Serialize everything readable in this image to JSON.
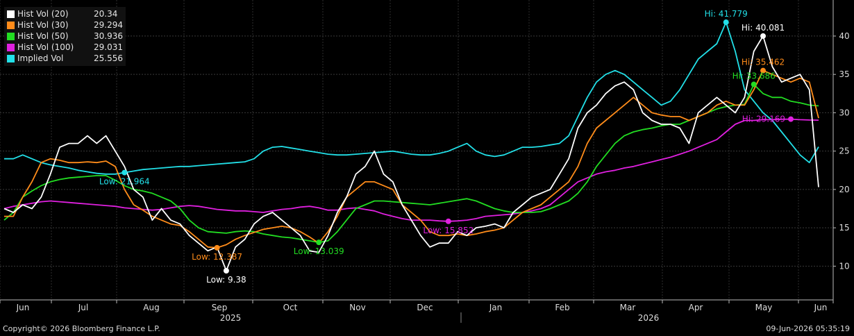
{
  "chart_data": {
    "type": "line",
    "y_axis": {
      "ticks": [
        10,
        15,
        20,
        25,
        30,
        35,
        40
      ],
      "ylim": [
        5.6,
        44.7
      ],
      "side": "right"
    },
    "x_axis": {
      "months": [
        "Jun",
        "Jul",
        "Aug",
        "Sep",
        "Oct",
        "Nov",
        "Dec",
        "Jan",
        "Feb",
        "Mar",
        "Apr",
        "May",
        "Jun"
      ],
      "years": [
        "2025",
        "2026"
      ]
    },
    "series": [
      {
        "name": "Hist Vol (20)",
        "last": "20.34",
        "color": "#ffffff",
        "values": [
          17.5,
          17,
          18,
          17.5,
          19,
          22,
          25.5,
          26,
          26,
          27,
          26,
          27,
          25,
          23,
          20,
          19,
          16,
          17.5,
          16,
          15.5,
          14,
          13,
          12,
          12.5,
          9.4,
          12.5,
          13.5,
          15.5,
          16.5,
          17,
          16,
          15,
          14,
          12,
          11.8,
          14,
          17,
          19,
          22,
          23,
          25,
          22,
          21,
          18,
          16,
          14,
          12.5,
          13,
          13,
          14.5,
          14,
          15,
          15.2,
          15.5,
          15,
          17,
          18,
          19,
          19.5,
          20,
          22,
          24,
          28,
          30,
          31,
          32.5,
          33.5,
          34,
          33,
          30,
          29,
          28.5,
          28.5,
          28,
          26,
          30,
          31,
          32,
          31,
          30,
          32,
          38,
          40,
          36,
          34,
          34.5,
          35,
          33,
          20.3
        ]
      },
      {
        "name": "Hist Vol (30)",
        "last": "29.294",
        "color": "#ff8c1a",
        "values": [
          16.5,
          16.5,
          19,
          21,
          23.5,
          24,
          23.8,
          23.5,
          23.5,
          23.6,
          23.5,
          23.7,
          23,
          20,
          18,
          17.3,
          16.5,
          16,
          15.5,
          15.3,
          14.5,
          13.5,
          12.5,
          12.4,
          12.8,
          13.5,
          14,
          14.4,
          14.8,
          15,
          15.2,
          15,
          14.5,
          13.8,
          13,
          14.5,
          16.5,
          19,
          20,
          21,
          21,
          20.5,
          20,
          18,
          17,
          16,
          14.5,
          14,
          14,
          14.2,
          14,
          14.2,
          14.5,
          14.7,
          15,
          16,
          17,
          17.5,
          18,
          19,
          20,
          21,
          23,
          26,
          28,
          29,
          30,
          31,
          32,
          31,
          30,
          29.7,
          29.5,
          29.5,
          29,
          29.5,
          30,
          31,
          31.5,
          31,
          31,
          33,
          35.5,
          35,
          34.5,
          34,
          34.5,
          34,
          29.3
        ]
      },
      {
        "name": "Hist Vol (50)",
        "last": "30.936",
        "color": "#22dd22",
        "values": [
          16,
          17,
          19,
          19.8,
          20.5,
          21,
          21.3,
          21.5,
          21.6,
          21.7,
          21.8,
          21.8,
          21.2,
          20.5,
          20,
          19.8,
          19.5,
          19,
          18.5,
          17.5,
          16,
          15,
          14.5,
          14.4,
          14.3,
          14.5,
          14.6,
          14.5,
          14.2,
          14,
          13.8,
          13.7,
          13.5,
          13.3,
          13.1,
          13.3,
          14.5,
          16,
          17.5,
          18,
          18.5,
          18.5,
          18.4,
          18.3,
          18.2,
          18.1,
          18,
          18.2,
          18.4,
          18.6,
          18.8,
          18.5,
          18,
          17.5,
          17.2,
          17,
          17,
          17,
          17.1,
          17.5,
          18,
          18.5,
          19.5,
          21,
          23,
          24.5,
          26,
          27,
          27.5,
          27.8,
          28,
          28.3,
          28.5,
          28.5,
          29,
          29.5,
          30,
          30.5,
          30.8,
          31,
          31.1,
          33.7,
          32.5,
          32,
          32,
          31.5,
          31.3,
          31,
          30.9
        ]
      },
      {
        "name": "Hist Vol (100)",
        "last": "29.031",
        "color": "#e020e0",
        "values": [
          17.5,
          17.8,
          18,
          18.2,
          18.4,
          18.5,
          18.4,
          18.3,
          18.2,
          18.1,
          18,
          17.9,
          17.8,
          17.6,
          17.5,
          17.4,
          17.3,
          17.4,
          17.6,
          17.8,
          17.9,
          17.8,
          17.6,
          17.4,
          17.3,
          17.2,
          17.2,
          17.1,
          17,
          17.2,
          17.4,
          17.5,
          17.7,
          17.8,
          17.6,
          17.3,
          17.3,
          17.5,
          17.6,
          17.4,
          17.2,
          16.8,
          16.5,
          16.2,
          16,
          16,
          16,
          15.9,
          15.85,
          15.9,
          16,
          16.2,
          16.5,
          16.6,
          16.7,
          16.8,
          17,
          17.2,
          17.5,
          18,
          19,
          20,
          21,
          21.5,
          22,
          22.3,
          22.5,
          22.8,
          23,
          23.3,
          23.6,
          23.9,
          24.2,
          24.6,
          25,
          25.5,
          26,
          26.5,
          27.5,
          28.5,
          29,
          29,
          29.1,
          29.1,
          29.15,
          29.17,
          29.1,
          29.05,
          29.03
        ]
      },
      {
        "name": "Implied Vol",
        "last": "25.556",
        "color": "#22e0e8",
        "values": [
          24,
          24,
          24.5,
          24,
          23.5,
          23.2,
          23,
          22.8,
          22.5,
          22.3,
          22.1,
          22,
          22,
          22.2,
          22.4,
          22.6,
          22.7,
          22.8,
          22.9,
          23,
          23,
          23.1,
          23.2,
          23.3,
          23.4,
          23.5,
          23.6,
          24,
          25,
          25.5,
          25.6,
          25.4,
          25.2,
          25,
          24.8,
          24.6,
          24.5,
          24.5,
          24.6,
          24.7,
          24.8,
          24.9,
          25,
          24.8,
          24.6,
          24.5,
          24.5,
          24.7,
          25,
          25.5,
          26,
          25,
          24.5,
          24.3,
          24.5,
          25,
          25.5,
          25.5,
          25.6,
          25.8,
          26,
          27,
          29.5,
          32,
          34,
          35,
          35.5,
          35,
          34,
          33,
          32,
          31,
          31.5,
          33,
          35,
          37,
          38,
          39,
          41.8,
          38,
          33,
          31.5,
          30,
          29,
          27.5,
          26,
          24.5,
          23.5,
          25.556
        ]
      }
    ],
    "annotations": [
      {
        "series": 4,
        "index": 13,
        "label": "Low: 21.964",
        "anchor": "below"
      },
      {
        "series": 1,
        "index": 23,
        "label": "Low: 12.387",
        "anchor": "below"
      },
      {
        "series": 0,
        "index": 24,
        "label": "Low: 9.38",
        "anchor": "below"
      },
      {
        "series": 2,
        "index": 34,
        "label": "Low: 13.039",
        "anchor": "below"
      },
      {
        "series": 3,
        "index": 48,
        "label": "Low: 15.852",
        "anchor": "below"
      },
      {
        "series": 4,
        "index": 78,
        "label": "Hi: 41.779",
        "anchor": "above"
      },
      {
        "series": 0,
        "index": 82,
        "label": "Hi: 40.081",
        "anchor": "above"
      },
      {
        "series": 1,
        "index": 82,
        "label": "Hi: 35.462",
        "anchor": "above"
      },
      {
        "series": 2,
        "index": 81,
        "label": "Hi: 33.686",
        "anchor": "above"
      },
      {
        "series": 3,
        "index": 85,
        "label": "Hi: 29.169",
        "anchor": "left"
      }
    ],
    "grid": true,
    "legend": "top-left"
  },
  "footer": {
    "copyright": "Copyright© 2026 Bloomberg Finance L.P.",
    "timestamp": "09-Jun-2026 05:35:19"
  }
}
